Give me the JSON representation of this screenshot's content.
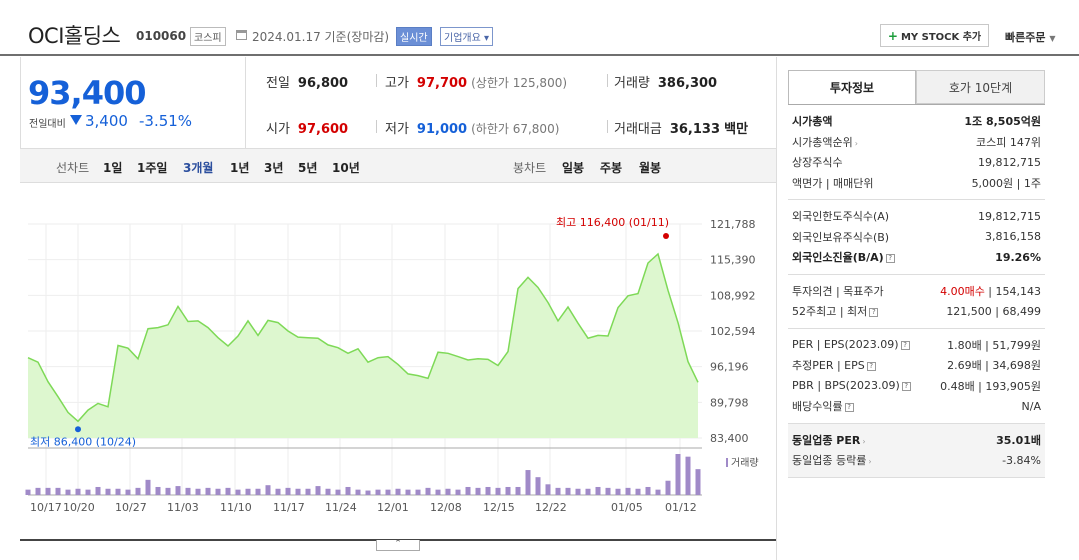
{
  "header": {
    "title": "OCI홀딩스",
    "code": "010060",
    "market": "코스피",
    "date": "2024.01.17 기준(장마감)",
    "realtime": "실시간",
    "company_info": "기업개요",
    "mystock": "MY STOCK 추가",
    "quick_order": "빠른주문"
  },
  "price": {
    "current": "93,400",
    "diff_label": "전일대비",
    "diff": "3,400",
    "rate": "-3.51%"
  },
  "stats": {
    "prev_label": "전일",
    "prev": "96,800",
    "high_label": "고가",
    "high": "97,700",
    "upper_limit": "(상한가 125,800)",
    "volume_label": "거래량",
    "volume": "386,300",
    "open_label": "시가",
    "open": "97,600",
    "low_label": "저가",
    "low": "91,000",
    "lower_limit": "(하한가 67,800)",
    "amount_label": "거래대금",
    "amount": "36,133",
    "amount_unit": "백만"
  },
  "tabs": {
    "line_label": "선차트",
    "line": [
      "1일",
      "1주일",
      "3개월",
      "1년",
      "3년",
      "5년",
      "10년"
    ],
    "candle_label": "봉차트",
    "candle": [
      "일봉",
      "주봉",
      "월봉"
    ],
    "active": "3개월"
  },
  "chart_data": {
    "type": "area",
    "y_ticks": [
      "121,788",
      "115,390",
      "108,992",
      "102,594",
      "96,196",
      "89,798",
      "83,400"
    ],
    "ylim": [
      83400,
      121788
    ],
    "x_labels": [
      "10/17",
      "10/20",
      "10/27",
      "11/03",
      "11/10",
      "11/17",
      "11/24",
      "12/01",
      "12/08",
      "12/15",
      "12/22",
      "01/05",
      "01/12"
    ],
    "values": [
      97800,
      97000,
      93500,
      90800,
      88000,
      86400,
      88400,
      89600,
      89000,
      100000,
      99500,
      97600,
      103000,
      103200,
      103700,
      107000,
      104300,
      104400,
      103200,
      101400,
      99900,
      101700,
      104400,
      101800,
      104500,
      104100,
      102600,
      101500,
      101400,
      101300,
      100100,
      99600,
      98600,
      99400,
      97000,
      97800,
      98000,
      96600,
      94900,
      94600,
      94100,
      98800,
      98600,
      98000,
      97400,
      97600,
      97500,
      96400,
      98900,
      110200,
      112200,
      110400,
      107700,
      104400,
      106900,
      104000,
      101300,
      101800,
      101700,
      106800,
      108900,
      109300,
      114800,
      116400,
      109900,
      104100,
      97100,
      93400
    ],
    "volume": [
      0.06,
      0.08,
      0.08,
      0.08,
      0.06,
      0.07,
      0.06,
      0.09,
      0.07,
      0.07,
      0.06,
      0.08,
      0.17,
      0.09,
      0.08,
      0.1,
      0.08,
      0.07,
      0.08,
      0.07,
      0.08,
      0.06,
      0.07,
      0.07,
      0.11,
      0.07,
      0.08,
      0.07,
      0.07,
      0.1,
      0.07,
      0.06,
      0.09,
      0.06,
      0.05,
      0.06,
      0.06,
      0.07,
      0.06,
      0.06,
      0.08,
      0.06,
      0.07,
      0.06,
      0.09,
      0.08,
      0.09,
      0.08,
      0.09,
      0.09,
      0.28,
      0.2,
      0.12,
      0.08,
      0.08,
      0.07,
      0.07,
      0.09,
      0.08,
      0.07,
      0.08,
      0.07,
      0.09,
      0.06,
      0.16,
      0.46,
      0.43,
      0.29
    ],
    "high_annotation": "최고 116,400 (01/11)",
    "low_annotation": "최저 86,400 (10/24)",
    "high_index": 63,
    "low_index": 5,
    "volume_legend": "거래량",
    "colors": {
      "line": "#7ed957",
      "fill": "#ddf7cf",
      "volume": "#a08ac8",
      "high": "#d30000",
      "low": "#1560d8"
    }
  },
  "panel": {
    "tab_invest": "투자정보",
    "tab_hoga": "호가 10단계",
    "group1": [
      {
        "k": "시가총액",
        "v": "1조 8,505억원",
        "bold": true
      },
      {
        "k": "시가총액순위",
        "v": "코스피 147위",
        "caret": true
      },
      {
        "k": "상장주식수",
        "v": "19,812,715"
      },
      {
        "k": "액면가 | 매매단위",
        "v": "5,000원 | 1주"
      }
    ],
    "group2": [
      {
        "k": "외국인한도주식수(A)",
        "v": "19,812,715"
      },
      {
        "k": "외국인보유주식수(B)",
        "v": "3,816,158"
      },
      {
        "k": "외국인소진율(B/A)",
        "v": "19.26%",
        "bold": true,
        "tag": true
      }
    ],
    "group3": [
      {
        "k": "투자의견 | 목표주가",
        "v_red": "4.00매수",
        "v": " | 154,143"
      },
      {
        "k": "52주최고 | 최저",
        "v": "121,500 | 68,499",
        "tag": true
      }
    ],
    "group4": [
      {
        "k": "PER | EPS(2023.09)",
        "v": "1.80배 | 51,799원",
        "tag": true
      },
      {
        "k": "추정PER | EPS",
        "v": "2.69배 | 34,698원",
        "tag": true
      },
      {
        "k": "PBR | BPS(2023.09)",
        "v": "0.48배 | 193,905원",
        "tag": true
      },
      {
        "k": "배당수익률",
        "v": "N/A",
        "tag": true
      }
    ],
    "group5": [
      {
        "k": "동일업종 PER",
        "v": "35.01배",
        "bold": true,
        "caret": true
      },
      {
        "k": "동일업종 등락률",
        "v": "-3.84%",
        "caret": true,
        "blue": true
      }
    ]
  }
}
